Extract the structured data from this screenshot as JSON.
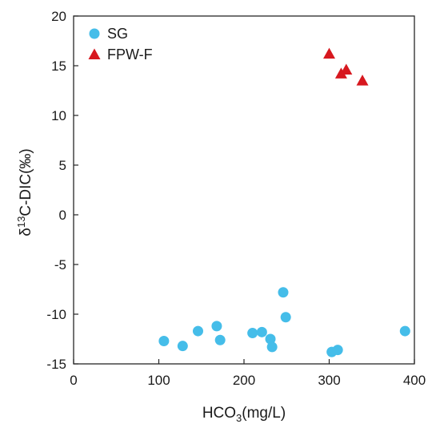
{
  "chart_data": {
    "type": "scatter",
    "title": "",
    "xlabel": {
      "base": "HCO",
      "sub": "3",
      "rest": "(mg/L)"
    },
    "ylabel": {
      "prefix": "δ",
      "sup": "13",
      "rest": "C-DIC(‰)"
    },
    "xlim": [
      0,
      400
    ],
    "ylim": [
      -15,
      20
    ],
    "xticks": [
      0,
      100,
      200,
      300,
      400
    ],
    "yticks": [
      -15,
      -10,
      -5,
      0,
      5,
      10,
      15,
      20
    ],
    "legend_position": "top-left",
    "grid": false,
    "series": [
      {
        "name": "SG",
        "marker": "circle",
        "color": "#45bde9",
        "points": [
          [
            106,
            -12.7
          ],
          [
            128,
            -13.2
          ],
          [
            146,
            -11.7
          ],
          [
            168,
            -11.2
          ],
          [
            172,
            -12.6
          ],
          [
            210,
            -11.9
          ],
          [
            221,
            -11.8
          ],
          [
            231,
            -12.5
          ],
          [
            233,
            -13.3
          ],
          [
            246,
            -7.8
          ],
          [
            249,
            -10.3
          ],
          [
            303,
            -13.8
          ],
          [
            310,
            -13.6
          ],
          [
            389,
            -11.7
          ]
        ]
      },
      {
        "name": "FPW-F",
        "marker": "triangle",
        "color": "#d7181f",
        "points": [
          [
            300,
            16.2
          ],
          [
            314,
            14.2
          ],
          [
            320,
            14.6
          ],
          [
            339,
            13.5
          ]
        ]
      }
    ]
  }
}
